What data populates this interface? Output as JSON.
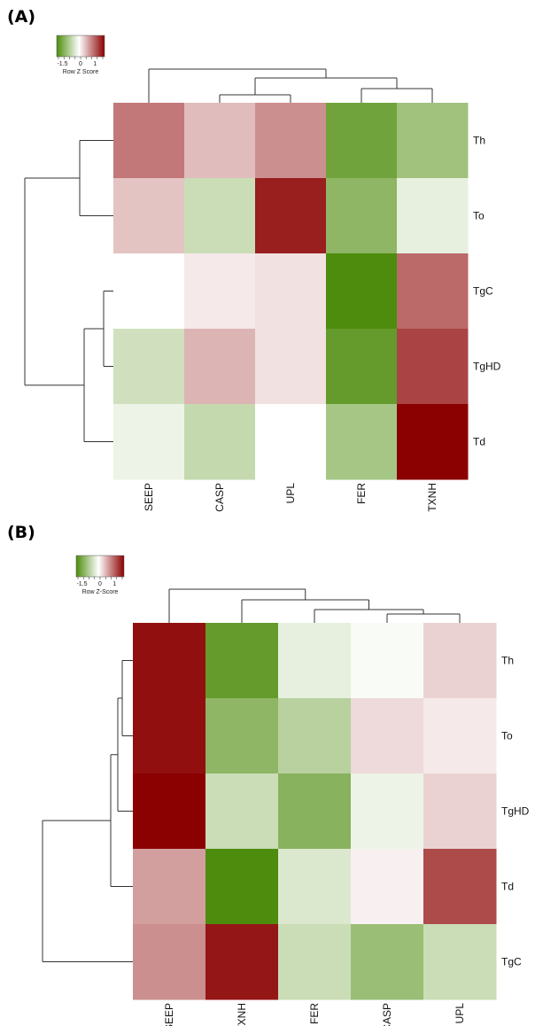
{
  "chart_data": [
    {
      "type": "heatmap",
      "panel_label": "(A)",
      "color_key": {
        "title": "Row Z Score",
        "ticks": [
          "-1.5",
          "0",
          "1"
        ],
        "low_color": "#4d8c0c",
        "mid_color": "#ffffff",
        "high_color": "#8b0000"
      },
      "columns": [
        "SEEP",
        "CASP",
        "UPL",
        "FER",
        "TXNH"
      ],
      "rows": [
        "Th",
        "To",
        "TgC",
        "TgHD",
        "Td"
      ],
      "values": [
        [
          0.9,
          0.45,
          0.75,
          -1.2,
          -0.8
        ],
        [
          0.4,
          -0.45,
          1.5,
          -0.95,
          -0.2
        ],
        [
          0.0,
          0.15,
          0.2,
          -1.5,
          1.0
        ],
        [
          -0.4,
          0.5,
          0.2,
          -1.3,
          1.25
        ],
        [
          -0.15,
          -0.5,
          0.0,
          -0.75,
          1.7
        ]
      ]
    },
    {
      "type": "heatmap",
      "panel_label": "(B)",
      "color_key": {
        "title": "Row Z-Score",
        "ticks": [
          "-1.5",
          "0",
          "1"
        ],
        "low_color": "#4d8c0c",
        "mid_color": "#ffffff",
        "high_color": "#8b0000"
      },
      "columns": [
        "SEEP",
        "TXNH",
        "FER",
        "CASP",
        "UPL"
      ],
      "rows": [
        "Th",
        "To",
        "TgHD",
        "Td",
        "TgC"
      ],
      "values": [
        [
          1.6,
          -1.3,
          -0.2,
          -0.05,
          0.3
        ],
        [
          1.6,
          -0.95,
          -0.6,
          0.25,
          0.15
        ],
        [
          1.7,
          -0.45,
          -1.0,
          -0.15,
          0.3
        ],
        [
          0.65,
          -1.5,
          -0.3,
          0.1,
          1.2
        ],
        [
          0.75,
          1.55,
          -0.45,
          -0.85,
          -0.45
        ]
      ]
    }
  ]
}
